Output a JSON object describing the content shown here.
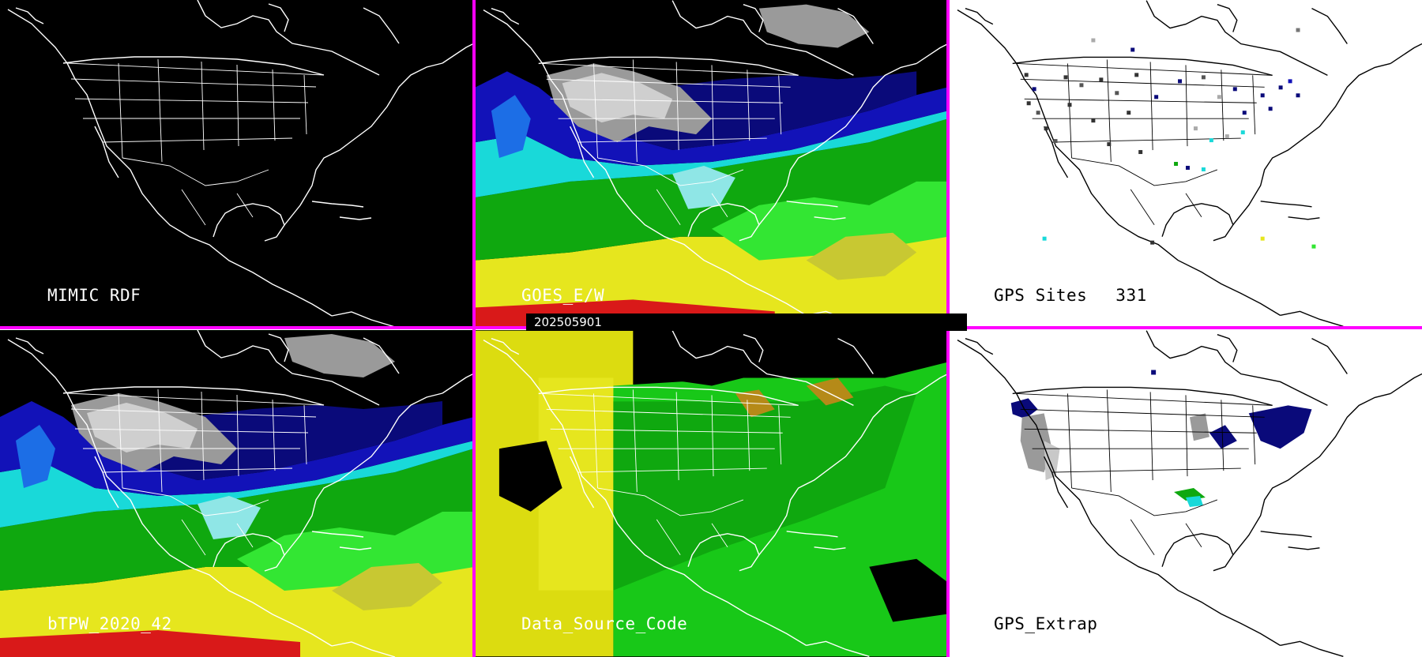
{
  "timestamp": "202505901",
  "panels": [
    {
      "id": "mimic-rdf",
      "label": "MIMIC RDF",
      "style": "dark",
      "layer": "none"
    },
    {
      "id": "goes-ew",
      "label": "GOES_E/W",
      "style": "dark",
      "layer": "tpw"
    },
    {
      "id": "gps-sites",
      "label": "GPS Sites",
      "count": "331",
      "style": "light",
      "layer": "sites"
    },
    {
      "id": "btpw-2020-42",
      "label": "bTPW_2020_42",
      "style": "dark",
      "layer": "tpw"
    },
    {
      "id": "data-source-code",
      "label": "Data_Source_Code",
      "style": "dark",
      "layer": "source"
    },
    {
      "id": "gps-extrap",
      "label": "GPS_Extrap",
      "style": "light",
      "layer": "extrap"
    }
  ],
  "colors": {
    "separator": "#ff00ff",
    "map_lines_dark": "#ffffff",
    "map_lines_light": "#000000",
    "tpw_scale": [
      "#9a9a9a",
      "#cfcfcf",
      "#0a0a7a",
      "#1212b8",
      "#1c6ee6",
      "#19d9d9",
      "#8fe6e6",
      "#0fa80f",
      "#33e633",
      "#c8c832",
      "#e6e61e",
      "#d91919"
    ]
  }
}
